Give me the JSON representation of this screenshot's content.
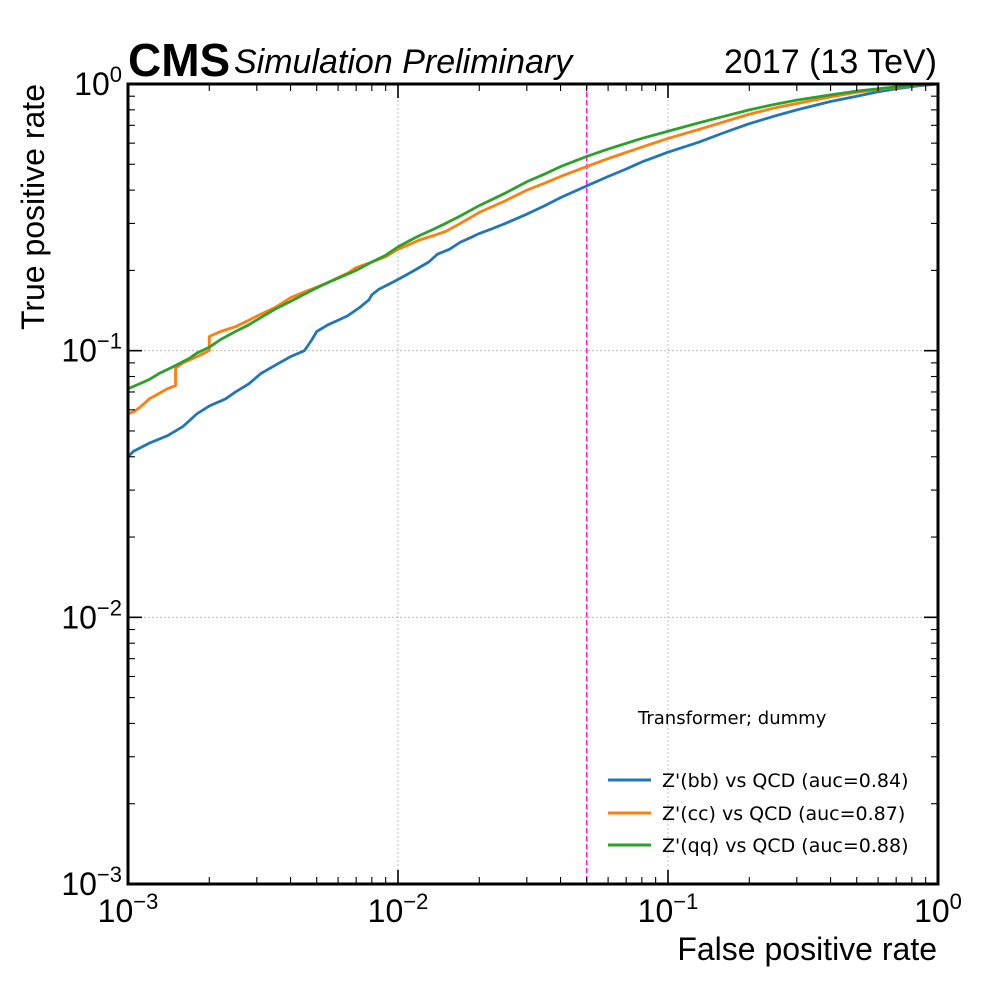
{
  "header": {
    "experiment": "CMS",
    "status": "Simulation Preliminary",
    "lumi": "2017 (13 TeV)"
  },
  "chart_data": {
    "type": "line",
    "xlabel": "False positive rate",
    "ylabel": "True positive rate",
    "xscale": "log",
    "yscale": "log",
    "xlim": [
      0.001,
      1
    ],
    "ylim": [
      0.001,
      1
    ],
    "grid": true,
    "legend_title": "Transformer; dummy",
    "legend_position": "lower-right",
    "x_ticks": [
      {
        "base": "10",
        "exp": "−3"
      },
      {
        "base": "10",
        "exp": "−2"
      },
      {
        "base": "10",
        "exp": "−1"
      },
      {
        "base": "10",
        "exp": "0"
      }
    ],
    "y_ticks": [
      {
        "base": "10",
        "exp": "−3"
      },
      {
        "base": "10",
        "exp": "−2"
      },
      {
        "base": "10",
        "exp": "−1"
      },
      {
        "base": "10",
        "exp": "0"
      }
    ],
    "reference_line": {
      "x": 0.05,
      "color": "#ff00ff",
      "style": "dashed"
    },
    "series": [
      {
        "name": "Z'(bb) vs QCD (auc=0.84)",
        "color": "#1f77b4",
        "x": [
          0.001,
          0.00105,
          0.0011,
          0.0012,
          0.0014,
          0.0015,
          0.0016,
          0.0018,
          0.002,
          0.0023,
          0.0025,
          0.0028,
          0.0031,
          0.0035,
          0.004,
          0.0045,
          0.0048,
          0.005,
          0.0055,
          0.006,
          0.0065,
          0.0072,
          0.0078,
          0.008,
          0.0085,
          0.0095,
          0.0105,
          0.0115,
          0.013,
          0.014,
          0.0155,
          0.017,
          0.0185,
          0.02,
          0.022,
          0.025,
          0.03,
          0.035,
          0.04,
          0.05,
          0.06,
          0.07,
          0.08,
          0.1,
          0.13,
          0.16,
          0.2,
          0.25,
          0.3,
          0.4,
          0.5,
          0.6,
          0.7,
          0.85,
          1.0
        ],
        "y": [
          0.04,
          0.042,
          0.043,
          0.045,
          0.048,
          0.05,
          0.052,
          0.058,
          0.062,
          0.066,
          0.07,
          0.075,
          0.082,
          0.088,
          0.095,
          0.1,
          0.11,
          0.118,
          0.125,
          0.13,
          0.135,
          0.145,
          0.155,
          0.162,
          0.17,
          0.18,
          0.19,
          0.2,
          0.215,
          0.23,
          0.24,
          0.255,
          0.265,
          0.275,
          0.285,
          0.3,
          0.325,
          0.35,
          0.375,
          0.415,
          0.45,
          0.48,
          0.51,
          0.555,
          0.605,
          0.655,
          0.71,
          0.76,
          0.8,
          0.86,
          0.9,
          0.935,
          0.96,
          0.985,
          1.0
        ]
      },
      {
        "name": "Z'(cc) vs QCD (auc=0.87)",
        "color": "#ff7f0e",
        "x": [
          0.001,
          0.00105,
          0.0011,
          0.0012,
          0.0013,
          0.0014,
          0.0015,
          0.0015,
          0.0016,
          0.0018,
          0.002,
          0.002,
          0.0022,
          0.0025,
          0.0028,
          0.0031,
          0.0035,
          0.004,
          0.0045,
          0.005,
          0.0055,
          0.006,
          0.0065,
          0.007,
          0.008,
          0.009,
          0.01,
          0.011,
          0.012,
          0.0135,
          0.015,
          0.017,
          0.02,
          0.025,
          0.03,
          0.035,
          0.04,
          0.05,
          0.06,
          0.08,
          0.1,
          0.13,
          0.16,
          0.2,
          0.25,
          0.3,
          0.4,
          0.5,
          0.6,
          0.7,
          0.85,
          1.0
        ],
        "y": [
          0.058,
          0.059,
          0.061,
          0.066,
          0.069,
          0.072,
          0.074,
          0.086,
          0.09,
          0.095,
          0.1,
          0.113,
          0.118,
          0.123,
          0.13,
          0.137,
          0.145,
          0.158,
          0.166,
          0.173,
          0.18,
          0.188,
          0.195,
          0.205,
          0.215,
          0.225,
          0.24,
          0.25,
          0.26,
          0.27,
          0.28,
          0.3,
          0.33,
          0.365,
          0.4,
          0.425,
          0.45,
          0.49,
          0.525,
          0.58,
          0.625,
          0.675,
          0.72,
          0.77,
          0.815,
          0.845,
          0.895,
          0.93,
          0.955,
          0.97,
          0.99,
          1.0
        ]
      },
      {
        "name": "Z'(qq) vs QCD (auc=0.88)",
        "color": "#2ca02c",
        "x": [
          0.001,
          0.0011,
          0.0012,
          0.0013,
          0.0014,
          0.0015,
          0.0016,
          0.0017,
          0.0018,
          0.002,
          0.0022,
          0.0025,
          0.0028,
          0.0031,
          0.0035,
          0.004,
          0.0045,
          0.005,
          0.0055,
          0.006,
          0.007,
          0.008,
          0.009,
          0.01,
          0.011,
          0.012,
          0.0135,
          0.015,
          0.017,
          0.02,
          0.025,
          0.03,
          0.035,
          0.04,
          0.05,
          0.06,
          0.08,
          0.1,
          0.13,
          0.16,
          0.2,
          0.25,
          0.3,
          0.4,
          0.5,
          0.6,
          0.7,
          0.85,
          1.0
        ],
        "y": [
          0.072,
          0.075,
          0.078,
          0.082,
          0.085,
          0.088,
          0.091,
          0.094,
          0.098,
          0.103,
          0.11,
          0.118,
          0.125,
          0.133,
          0.143,
          0.153,
          0.163,
          0.172,
          0.18,
          0.187,
          0.2,
          0.215,
          0.228,
          0.245,
          0.258,
          0.27,
          0.285,
          0.3,
          0.32,
          0.35,
          0.39,
          0.43,
          0.46,
          0.49,
          0.535,
          0.57,
          0.625,
          0.665,
          0.715,
          0.755,
          0.8,
          0.84,
          0.87,
          0.91,
          0.94,
          0.96,
          0.975,
          0.99,
          1.0
        ]
      }
    ]
  }
}
